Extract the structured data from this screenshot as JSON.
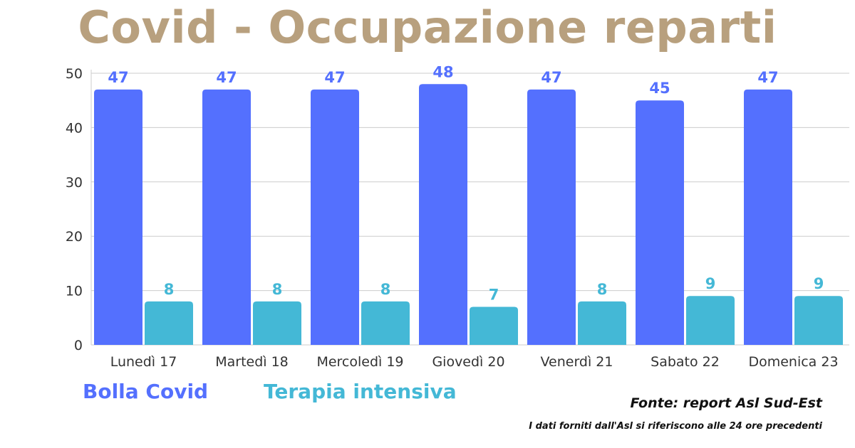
{
  "colors": {
    "title": "#b8a07e",
    "series_bolla": "#5470fe",
    "series_terapia": "#44b8d6",
    "grid": "#cccccc",
    "tick": "#333333"
  },
  "chart_data": {
    "type": "bar",
    "title": "Covid - Occupazione reparti",
    "categories": [
      "Lunedì 17",
      "Martedì 18",
      "Mercoledì 19",
      "Giovedì 20",
      "Venerdì 21",
      "Sabato 22",
      "Domenica 23"
    ],
    "series": [
      {
        "name": "Bolla Covid",
        "color": "#5470fe",
        "values": [
          47,
          47,
          47,
          48,
          47,
          45,
          47
        ]
      },
      {
        "name": "Terapia intensiva",
        "color": "#44b8d6",
        "values": [
          8,
          8,
          8,
          7,
          8,
          9,
          9
        ]
      }
    ],
    "ylim": [
      0,
      50
    ],
    "yticks": [
      0,
      10,
      20,
      30,
      40,
      50
    ],
    "grid": true,
    "legend": "bottom-left",
    "data_labels": true
  },
  "legend": {
    "bolla_label": "Bolla Covid",
    "terapia_label": "Terapia intensiva"
  },
  "footer": {
    "source": "Fonte: report Asl Sud-Est",
    "note": "I dati forniti dall'Asl si riferiscono alle 24 ore precedenti"
  }
}
